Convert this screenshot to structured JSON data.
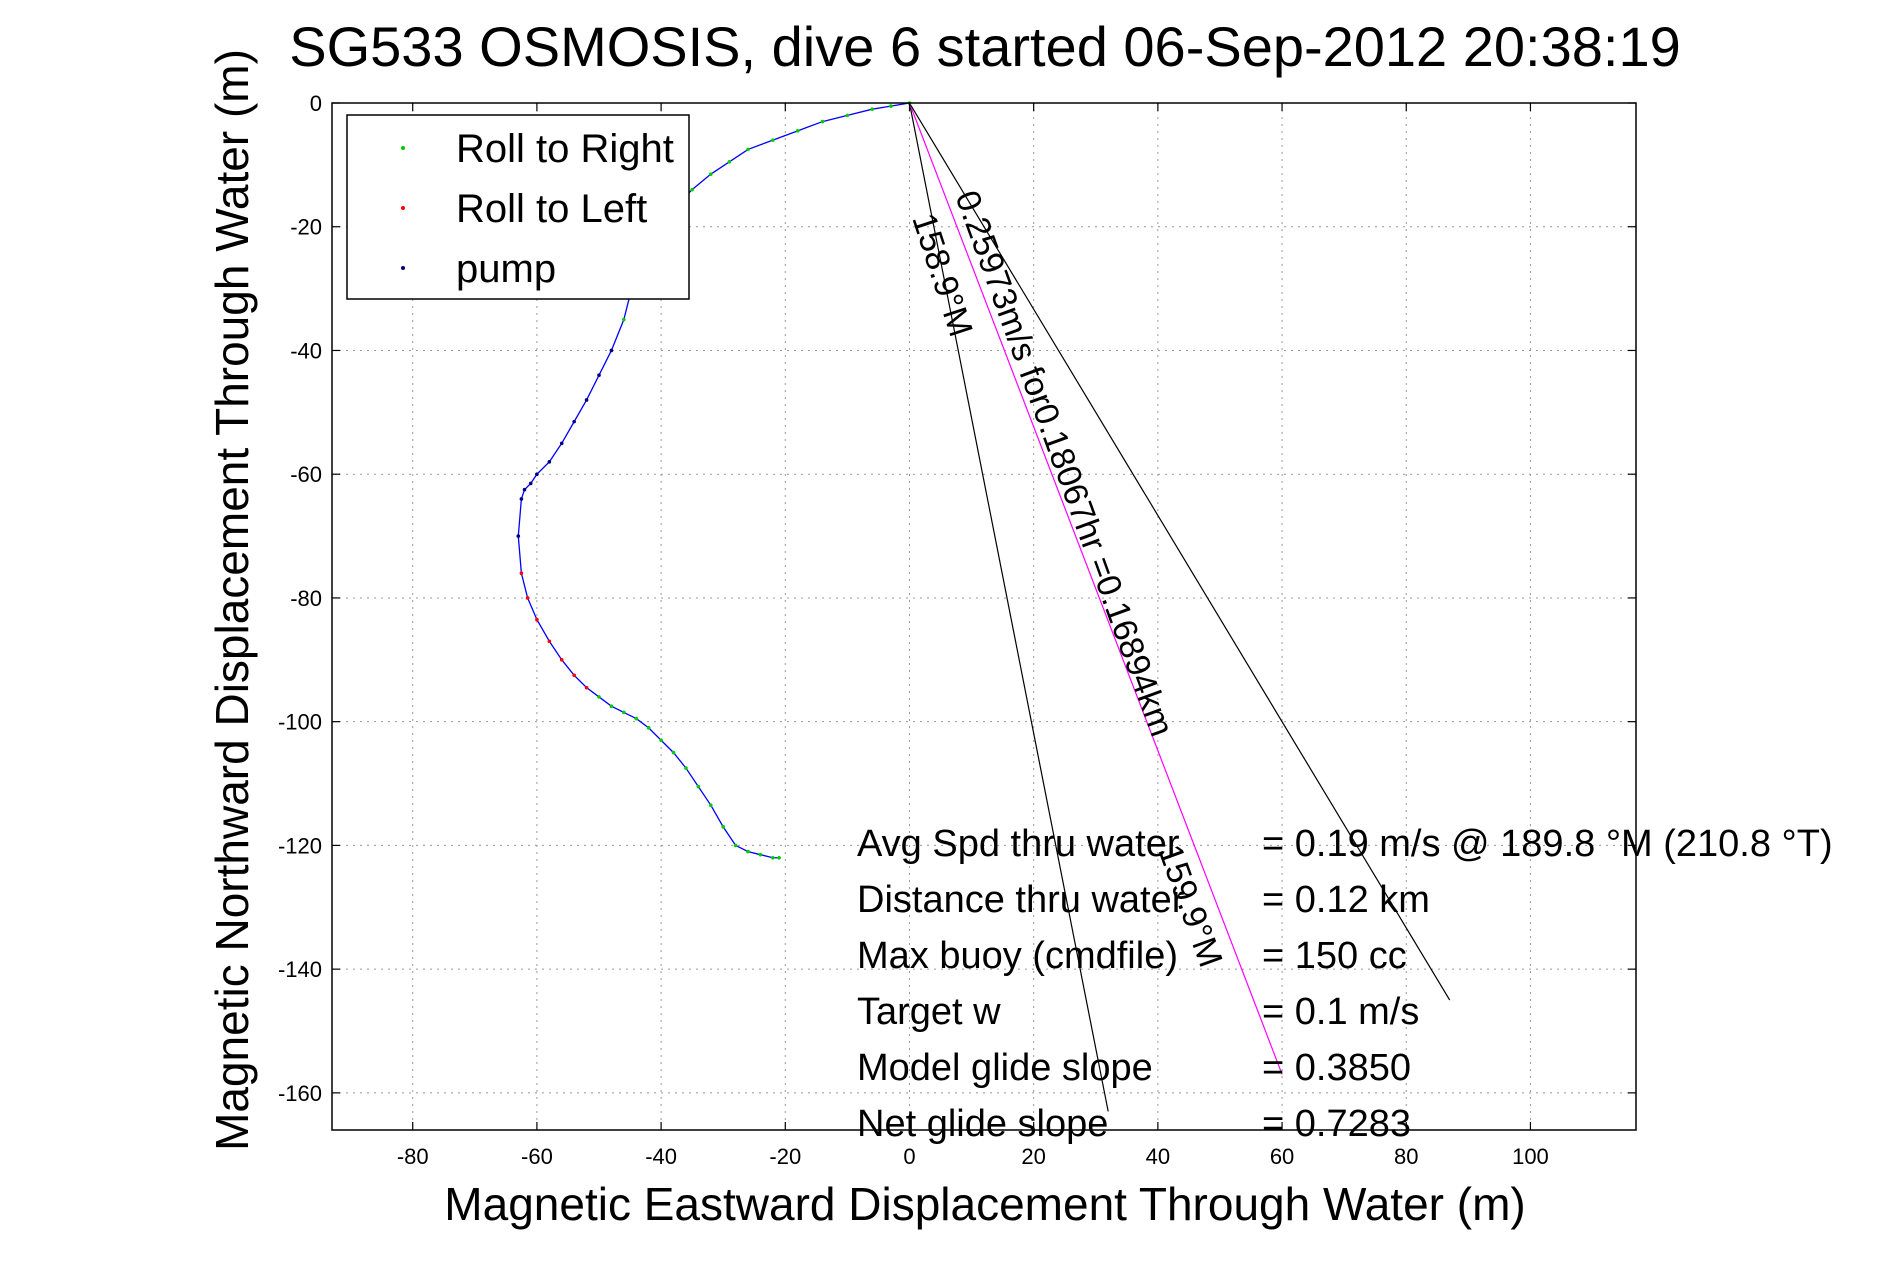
{
  "chart_data": {
    "type": "line",
    "title": "SG533 OSMOSIS, dive 6 started 06-Sep-2012 20:38:19",
    "xlabel": "Magnetic Eastward Displacement Through Water (m)",
    "ylabel": "Magnetic Northward Displacement Through Water (m)",
    "xlim": [
      -93,
      117
    ],
    "ylim": [
      -166,
      0
    ],
    "xticks": [
      -80,
      -60,
      -40,
      -20,
      0,
      20,
      40,
      60,
      80,
      100
    ],
    "yticks": [
      0,
      -20,
      -40,
      -60,
      -80,
      -100,
      -120,
      -140,
      -160
    ],
    "grid": true,
    "legend": {
      "placement": "top-left",
      "entries": [
        {
          "label": "Roll to Right",
          "color": "#00cc00"
        },
        {
          "label": "Roll to Left",
          "color": "#ff0000"
        },
        {
          "label": "pump",
          "color": "#000080"
        }
      ]
    },
    "series": [
      {
        "color": "#0000ff",
        "x": [
          0,
          -3,
          -6,
          -10,
          -14,
          -18,
          -22,
          -26,
          -29,
          -32,
          -35,
          -38,
          -40,
          -42,
          -44,
          -45,
          -46,
          -48,
          -50,
          -52,
          -54,
          -56,
          -58,
          -60,
          -61,
          -62,
          -62.5,
          -63,
          -62.5,
          -61.5,
          -60,
          -58,
          -56,
          -54,
          -52,
          -50,
          -48,
          -46,
          -44,
          -42,
          -40,
          -38,
          -36,
          -34,
          -32,
          -30,
          -28,
          -26,
          -24,
          -22,
          -21
        ],
        "y": [
          0,
          -0.5,
          -1,
          -2,
          -3,
          -4.5,
          -6,
          -7.5,
          -9.5,
          -11.5,
          -14,
          -17,
          -20,
          -23,
          -27,
          -31,
          -35,
          -40,
          -44,
          -48,
          -51.5,
          -55,
          -58,
          -60,
          -61.5,
          -62.5,
          -64,
          -70,
          -76,
          -80,
          -83.5,
          -87,
          -90,
          -92.5,
          -94.5,
          -96,
          -97.5,
          -98.5,
          -99.5,
          -101,
          -103,
          -105,
          -107.5,
          -110.5,
          -113.5,
          -117,
          -120,
          -121,
          -121.5,
          -122,
          -122
        ],
        "markers": {
          "right_roll_color": "#00cc00",
          "left_roll_color": "#ff0000",
          "pump_color": "#000080"
        }
      }
    ],
    "bearing_lines": [
      {
        "from": [
          0,
          0
        ],
        "to": [
          32,
          -163
        ],
        "color": "#000000"
      },
      {
        "from": [
          0,
          0
        ],
        "to": [
          60,
          -157
        ],
        "color": "#ff00ff"
      },
      {
        "from": [
          0,
          0
        ],
        "to": [
          87,
          -145
        ],
        "color": "#000000"
      }
    ],
    "annotations": {
      "ray_left": "158.9°M",
      "ray_middle": "0.25973m/s for0.18067hr =0.16894km",
      "ray_bottom": "159.9°M"
    },
    "stats": [
      {
        "label": "Avg Spd thru water",
        "value": "=  0.19 m/s @ 189.8 °M (210.8 °T)"
      },
      {
        "label": "Distance thru water",
        "value": "=  0.12 km"
      },
      {
        "label": "Max buoy (cmdfile)",
        "value": "= 150 cc"
      },
      {
        "label": "Target w",
        "value": "= 0.1 m/s"
      },
      {
        "label": "Model glide slope",
        "value": "= 0.3850"
      },
      {
        "label": "Net glide slope",
        "value": "= 0.7283"
      }
    ]
  }
}
